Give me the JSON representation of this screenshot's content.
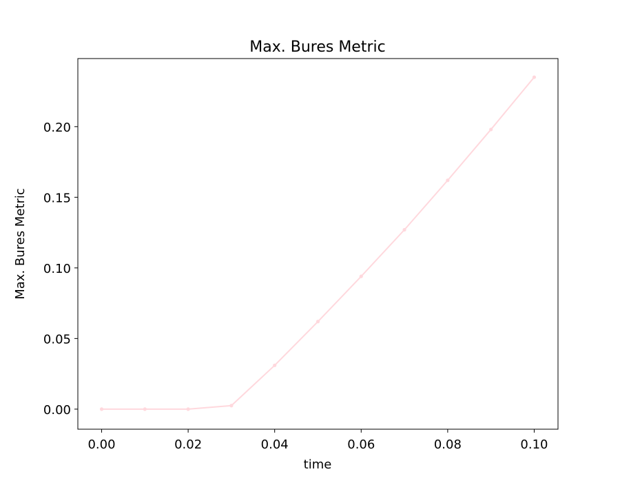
{
  "chart_data": {
    "type": "line",
    "title": "Max. Bures Metric",
    "xlabel": "time",
    "ylabel": "Max. Bures Metric",
    "xlim": [
      -0.0055,
      0.1055
    ],
    "ylim": [
      -0.0142,
      0.2482
    ],
    "xticks": [
      0.0,
      0.02,
      0.04,
      0.06,
      0.08,
      0.1
    ],
    "xtick_labels": [
      "0.00",
      "0.02",
      "0.04",
      "0.06",
      "0.08",
      "0.10"
    ],
    "yticks": [
      0.0,
      0.05,
      0.1,
      0.15,
      0.2
    ],
    "ytick_labels": [
      "0.00",
      "0.05",
      "0.10",
      "0.15",
      "0.20"
    ],
    "grid": false,
    "series": [
      {
        "color": "#ffd8dd",
        "marker": "circle",
        "x": [
          0.0,
          0.01,
          0.02,
          0.03,
          0.04,
          0.05,
          0.06,
          0.07,
          0.08,
          0.09,
          0.1
        ],
        "y": [
          0.0,
          0.0,
          0.0,
          0.0025,
          0.031,
          0.062,
          0.094,
          0.127,
          0.162,
          0.198,
          0.235
        ]
      }
    ]
  }
}
